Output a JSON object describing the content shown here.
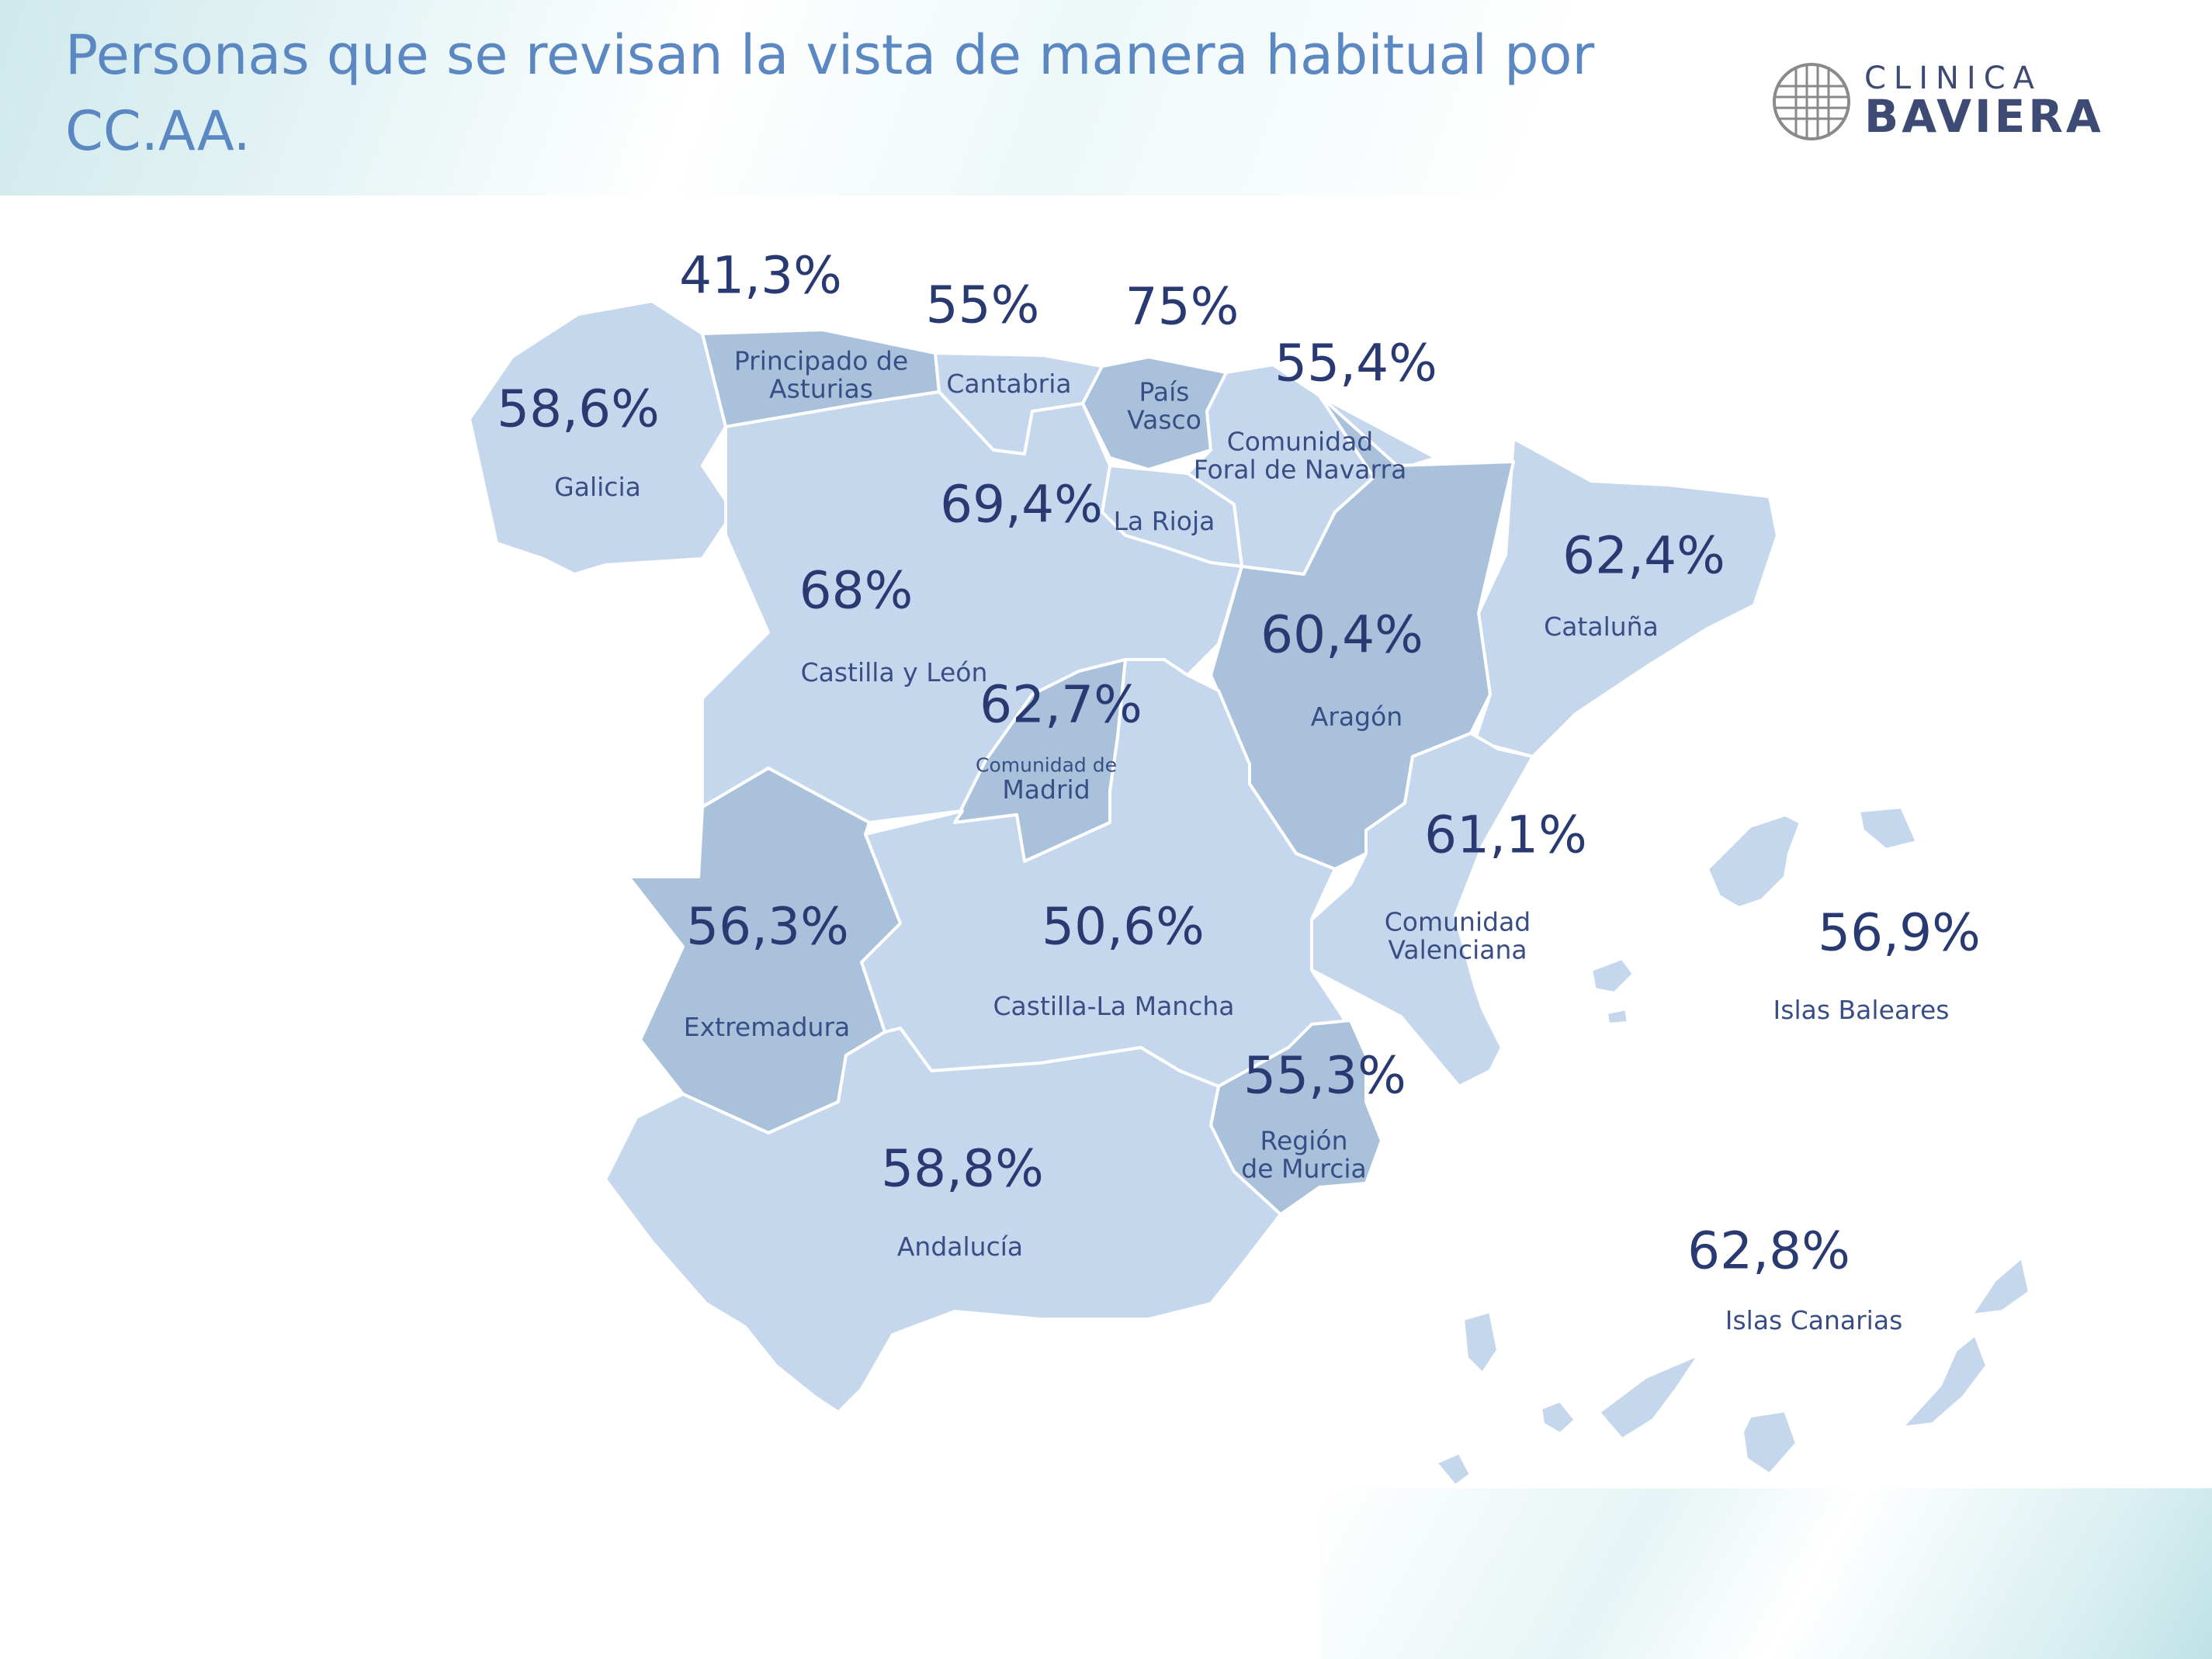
{
  "title": "Personas que se revisan la vista de manera habitual por CC.AA.",
  "logo": {
    "line1": "CLINICA",
    "line2": "BAVIERA"
  },
  "colors": {
    "title": "#5b88c2",
    "region_light": "#c5d7ec",
    "region_dark": "#aac1dc",
    "value_text": "#293a73"
  },
  "regions": {
    "galicia": {
      "label": "Galicia",
      "value": "58,6%"
    },
    "asturias": {
      "label": "Principado de\nAsturias",
      "value": "41,3%"
    },
    "cantabria": {
      "label": "Cantabria",
      "value": "55%"
    },
    "pais_vasco": {
      "label": "País\nVasco",
      "value": "75%"
    },
    "navarra": {
      "label": "Comunidad\nForal de Navarra",
      "value": "55,4%"
    },
    "la_rioja": {
      "label": "La Rioja",
      "value": "69,4%"
    },
    "castilla_leon": {
      "label": "Castilla y León",
      "value": "68%"
    },
    "cataluna": {
      "label": "Cataluña",
      "value": "62,4%"
    },
    "aragon": {
      "label": "Aragón",
      "value": "60,4%"
    },
    "madrid": {
      "label_small": "Comunidad de",
      "label": "Madrid",
      "value": "62,7%"
    },
    "valenciana": {
      "label": "Comunidad\nValenciana",
      "value": "61,1%"
    },
    "baleares": {
      "label": "Islas Baleares",
      "value": "56,9%"
    },
    "extremadura": {
      "label": "Extremadura",
      "value": "56,3%"
    },
    "castilla_la_mancha": {
      "label": "Castilla-La Mancha",
      "value": "50,6%"
    },
    "murcia": {
      "label": "Región\nde Murcia",
      "value": "55,3%"
    },
    "andalucia": {
      "label": "Andalucía",
      "value": "58,8%"
    },
    "canarias": {
      "label": "Islas Canarias",
      "value": "62,8%"
    }
  }
}
